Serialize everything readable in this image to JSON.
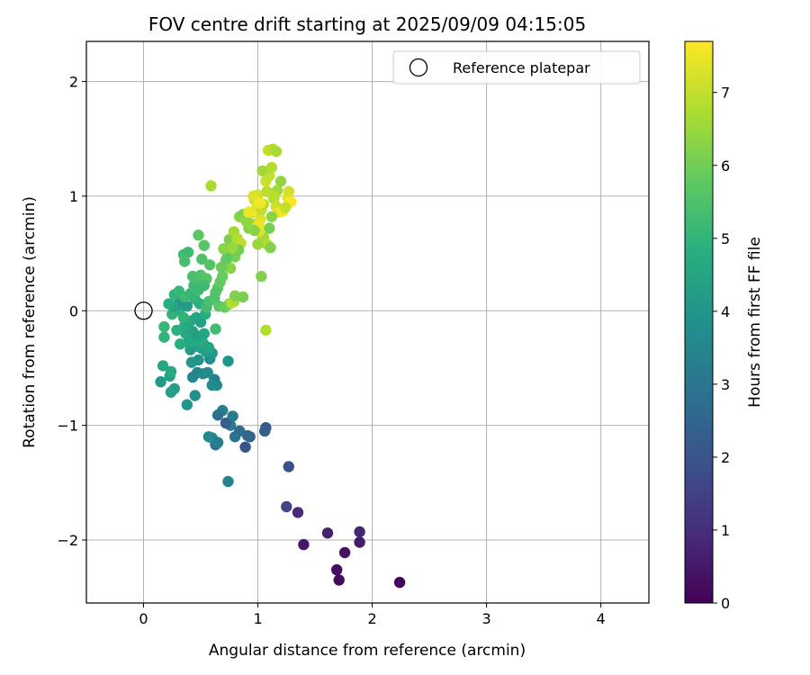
{
  "chart_data": {
    "type": "scatter",
    "title": "FOV centre drift starting at 2025/09/09 04:15:05",
    "xlabel": "Angular distance from reference (arcmin)",
    "ylabel": "Rotation from reference (arcmin)",
    "xlim": [
      -0.5,
      4.42
    ],
    "ylim": [
      -2.55,
      2.35
    ],
    "xticks": [
      0,
      1,
      2,
      3,
      4
    ],
    "yticks": [
      -2,
      -1,
      0,
      1,
      2
    ],
    "grid": true,
    "legend": {
      "placement": "top-right",
      "entries": [
        "Reference platepar"
      ]
    },
    "reference_point": {
      "x": 0.0,
      "y": 0.0
    },
    "colorbar": {
      "label": "Hours from first FF file",
      "colormap": "viridis",
      "min": 0,
      "max": 7.7,
      "ticks": [
        0,
        1,
        2,
        3,
        4,
        5,
        6,
        7
      ]
    },
    "points": [
      {
        "x": 2.24,
        "y": -2.37,
        "c": 0.1
      },
      {
        "x": 1.71,
        "y": -2.35,
        "c": 0.2
      },
      {
        "x": 1.69,
        "y": -2.26,
        "c": 0.3
      },
      {
        "x": 1.76,
        "y": -2.11,
        "c": 0.4
      },
      {
        "x": 1.4,
        "y": -2.04,
        "c": 0.5
      },
      {
        "x": 1.89,
        "y": -2.02,
        "c": 0.6
      },
      {
        "x": 1.61,
        "y": -1.94,
        "c": 0.7
      },
      {
        "x": 1.89,
        "y": -1.93,
        "c": 0.8
      },
      {
        "x": 1.35,
        "y": -1.76,
        "c": 0.9
      },
      {
        "x": 1.25,
        "y": -1.71,
        "c": 1.6
      },
      {
        "x": 1.27,
        "y": -1.36,
        "c": 1.9
      },
      {
        "x": 1.07,
        "y": -1.02,
        "c": 2.1
      },
      {
        "x": 1.06,
        "y": -1.05,
        "c": 2.2
      },
      {
        "x": 0.89,
        "y": -1.19,
        "c": 2.0
      },
      {
        "x": 0.93,
        "y": -1.1,
        "c": 2.4
      },
      {
        "x": 0.91,
        "y": -1.09,
        "c": 2.6
      },
      {
        "x": 0.84,
        "y": -1.05,
        "c": 2.7
      },
      {
        "x": 0.8,
        "y": -1.1,
        "c": 2.9
      },
      {
        "x": 0.76,
        "y": -1.0,
        "c": 3.1
      },
      {
        "x": 0.72,
        "y": -0.98,
        "c": 2.3
      },
      {
        "x": 0.69,
        "y": -0.87,
        "c": 3.3
      },
      {
        "x": 0.65,
        "y": -0.91,
        "c": 2.8
      },
      {
        "x": 0.78,
        "y": -0.92,
        "c": 3.2
      },
      {
        "x": 0.74,
        "y": -1.49,
        "c": 3.4
      },
      {
        "x": 0.63,
        "y": -1.17,
        "c": 3.0
      },
      {
        "x": 0.6,
        "y": -1.11,
        "c": 3.5
      },
      {
        "x": 0.57,
        "y": -1.1,
        "c": 3.6
      },
      {
        "x": 0.65,
        "y": -1.15,
        "c": 3.2
      },
      {
        "x": 0.64,
        "y": -0.65,
        "c": 3.6
      },
      {
        "x": 0.62,
        "y": -0.6,
        "c": 3.3
      },
      {
        "x": 0.6,
        "y": -0.65,
        "c": 3.7
      },
      {
        "x": 0.74,
        "y": -0.44,
        "c": 3.9
      },
      {
        "x": 0.45,
        "y": -0.74,
        "c": 3.8
      },
      {
        "x": 0.38,
        "y": -0.82,
        "c": 4.0
      },
      {
        "x": 0.15,
        "y": -0.62,
        "c": 4.1
      },
      {
        "x": 0.27,
        "y": -0.68,
        "c": 4.2
      },
      {
        "x": 0.24,
        "y": -0.71,
        "c": 4.3
      },
      {
        "x": 0.23,
        "y": -0.57,
        "c": 4.4
      },
      {
        "x": 0.24,
        "y": -0.53,
        "c": 4.6
      },
      {
        "x": 0.17,
        "y": -0.48,
        "c": 4.5
      },
      {
        "x": 0.43,
        "y": -0.58,
        "c": 3.5
      },
      {
        "x": 0.47,
        "y": -0.54,
        "c": 3.4
      },
      {
        "x": 0.52,
        "y": -0.55,
        "c": 3.6
      },
      {
        "x": 0.56,
        "y": -0.54,
        "c": 3.7
      },
      {
        "x": 0.42,
        "y": -0.45,
        "c": 4.0
      },
      {
        "x": 0.48,
        "y": -0.43,
        "c": 3.9
      },
      {
        "x": 0.58,
        "y": -0.42,
        "c": 3.8
      },
      {
        "x": 0.6,
        "y": -0.37,
        "c": 4.1
      },
      {
        "x": 0.55,
        "y": -0.36,
        "c": 4.2
      },
      {
        "x": 0.51,
        "y": -0.33,
        "c": 4.3
      },
      {
        "x": 0.46,
        "y": -0.31,
        "c": 4.4
      },
      {
        "x": 0.41,
        "y": -0.34,
        "c": 4.2
      },
      {
        "x": 0.39,
        "y": -0.28,
        "c": 4.5
      },
      {
        "x": 0.44,
        "y": -0.26,
        "c": 4.6
      },
      {
        "x": 0.52,
        "y": -0.28,
        "c": 4.7
      },
      {
        "x": 0.57,
        "y": -0.32,
        "c": 4.5
      },
      {
        "x": 0.32,
        "y": -0.29,
        "c": 4.8
      },
      {
        "x": 0.37,
        "y": -0.2,
        "c": 4.6
      },
      {
        "x": 0.43,
        "y": -0.18,
        "c": 4.4
      },
      {
        "x": 0.47,
        "y": -0.22,
        "c": 4.3
      },
      {
        "x": 0.53,
        "y": -0.2,
        "c": 4.5
      },
      {
        "x": 0.29,
        "y": -0.17,
        "c": 4.9
      },
      {
        "x": 0.36,
        "y": -0.13,
        "c": 4.7
      },
      {
        "x": 0.41,
        "y": -0.09,
        "c": 4.6
      },
      {
        "x": 0.46,
        "y": -0.06,
        "c": 4.5
      },
      {
        "x": 0.5,
        "y": -0.1,
        "c": 4.4
      },
      {
        "x": 0.54,
        "y": -0.03,
        "c": 4.8
      },
      {
        "x": 0.18,
        "y": -0.23,
        "c": 5.0
      },
      {
        "x": 0.18,
        "y": -0.14,
        "c": 5.1
      },
      {
        "x": 0.25,
        "y": -0.03,
        "c": 5.0
      },
      {
        "x": 0.31,
        "y": 0.0,
        "c": 4.9
      },
      {
        "x": 0.35,
        "y": -0.06,
        "c": 5.0
      },
      {
        "x": 0.38,
        "y": 0.04,
        "c": 4.2
      },
      {
        "x": 0.33,
        "y": 0.09,
        "c": 3.9
      },
      {
        "x": 0.29,
        "y": 0.05,
        "c": 4.1
      },
      {
        "x": 0.26,
        "y": 0.04,
        "c": 4.4
      },
      {
        "x": 0.22,
        "y": 0.06,
        "c": 4.8
      },
      {
        "x": 0.27,
        "y": 0.14,
        "c": 5.0
      },
      {
        "x": 0.31,
        "y": 0.17,
        "c": 5.1
      },
      {
        "x": 0.36,
        "y": 0.12,
        "c": 5.2
      },
      {
        "x": 0.41,
        "y": 0.15,
        "c": 5.1
      },
      {
        "x": 0.45,
        "y": 0.1,
        "c": 5.0
      },
      {
        "x": 0.49,
        "y": 0.06,
        "c": 4.9
      },
      {
        "x": 0.55,
        "y": 0.03,
        "c": 5.3
      },
      {
        "x": 0.57,
        "y": 0.08,
        "c": 5.4
      },
      {
        "x": 0.44,
        "y": 0.22,
        "c": 5.2
      },
      {
        "x": 0.47,
        "y": 0.26,
        "c": 5.3
      },
      {
        "x": 0.43,
        "y": 0.3,
        "c": 5.4
      },
      {
        "x": 0.5,
        "y": 0.31,
        "c": 5.5
      },
      {
        "x": 0.55,
        "y": 0.28,
        "c": 5.6
      },
      {
        "x": 0.53,
        "y": 0.22,
        "c": 5.3
      },
      {
        "x": 0.48,
        "y": 0.18,
        "c": 5.2
      },
      {
        "x": 0.63,
        "y": 0.16,
        "c": 5.7
      },
      {
        "x": 0.65,
        "y": 0.2,
        "c": 5.6
      },
      {
        "x": 0.67,
        "y": 0.25,
        "c": 5.8
      },
      {
        "x": 0.69,
        "y": 0.3,
        "c": 5.9
      },
      {
        "x": 0.62,
        "y": 0.11,
        "c": 5.5
      },
      {
        "x": 0.66,
        "y": 0.04,
        "c": 5.7
      },
      {
        "x": 0.63,
        "y": -0.16,
        "c": 5.3
      },
      {
        "x": 0.71,
        "y": 0.03,
        "c": 5.9
      },
      {
        "x": 0.75,
        "y": 0.06,
        "c": 6.0
      },
      {
        "x": 0.79,
        "y": 0.08,
        "c": 6.5
      },
      {
        "x": 0.77,
        "y": 0.07,
        "c": 6.8
      },
      {
        "x": 0.8,
        "y": 0.13,
        "c": 6.2
      },
      {
        "x": 0.87,
        "y": 0.12,
        "c": 6.1
      },
      {
        "x": 0.72,
        "y": 0.44,
        "c": 5.9
      },
      {
        "x": 0.76,
        "y": 0.37,
        "c": 6.3
      },
      {
        "x": 0.8,
        "y": 0.47,
        "c": 6.1
      },
      {
        "x": 0.72,
        "y": 0.53,
        "c": 6.2
      },
      {
        "x": 0.75,
        "y": 0.62,
        "c": 6.1
      },
      {
        "x": 0.79,
        "y": 0.69,
        "c": 6.6
      },
      {
        "x": 0.82,
        "y": 0.63,
        "c": 6.8
      },
      {
        "x": 0.85,
        "y": 0.59,
        "c": 6.9
      },
      {
        "x": 0.84,
        "y": 0.82,
        "c": 6.3
      },
      {
        "x": 0.87,
        "y": 0.84,
        "c": 6.1
      },
      {
        "x": 0.89,
        "y": 0.8,
        "c": 6.4
      },
      {
        "x": 0.92,
        "y": 0.72,
        "c": 6.2
      },
      {
        "x": 0.94,
        "y": 0.76,
        "c": 6.6
      },
      {
        "x": 0.96,
        "y": 0.86,
        "c": 6.7
      },
      {
        "x": 0.97,
        "y": 0.97,
        "c": 6.9
      },
      {
        "x": 1.0,
        "y": 1.01,
        "c": 7.2
      },
      {
        "x": 0.99,
        "y": 0.91,
        "c": 7.4
      },
      {
        "x": 1.0,
        "y": 0.85,
        "c": 7.6
      },
      {
        "x": 1.02,
        "y": 0.8,
        "c": 7.3
      },
      {
        "x": 1.03,
        "y": 0.88,
        "c": 7.0
      },
      {
        "x": 1.05,
        "y": 0.93,
        "c": 6.8
      },
      {
        "x": 1.08,
        "y": 1.04,
        "c": 6.9
      },
      {
        "x": 1.07,
        "y": 1.13,
        "c": 7.1
      },
      {
        "x": 1.1,
        "y": 1.18,
        "c": 7.0
      },
      {
        "x": 1.12,
        "y": 1.25,
        "c": 6.8
      },
      {
        "x": 1.04,
        "y": 1.22,
        "c": 6.6
      },
      {
        "x": 1.09,
        "y": 1.4,
        "c": 7.0
      },
      {
        "x": 1.13,
        "y": 1.41,
        "c": 6.9
      },
      {
        "x": 1.16,
        "y": 1.39,
        "c": 6.7
      },
      {
        "x": 1.17,
        "y": 1.05,
        "c": 6.6
      },
      {
        "x": 1.2,
        "y": 1.13,
        "c": 6.4
      },
      {
        "x": 1.14,
        "y": 0.98,
        "c": 6.5
      },
      {
        "x": 1.16,
        "y": 0.91,
        "c": 7.1
      },
      {
        "x": 1.18,
        "y": 0.86,
        "c": 7.4
      },
      {
        "x": 1.22,
        "y": 0.87,
        "c": 7.6
      },
      {
        "x": 1.26,
        "y": 0.99,
        "c": 7.4
      },
      {
        "x": 1.27,
        "y": 1.04,
        "c": 7.2
      },
      {
        "x": 1.29,
        "y": 0.95,
        "c": 7.7
      },
      {
        "x": 1.12,
        "y": 0.82,
        "c": 6.3
      },
      {
        "x": 1.1,
        "y": 0.72,
        "c": 6.1
      },
      {
        "x": 1.05,
        "y": 0.64,
        "c": 6.6
      },
      {
        "x": 1.08,
        "y": 0.58,
        "c": 6.8
      },
      {
        "x": 1.11,
        "y": 0.55,
        "c": 6.2
      },
      {
        "x": 1.0,
        "y": 0.58,
        "c": 6.5
      },
      {
        "x": 1.01,
        "y": 0.69,
        "c": 7.3
      },
      {
        "x": 1.01,
        "y": 0.75,
        "c": 7.5
      },
      {
        "x": 1.03,
        "y": 0.3,
        "c": 6.2
      },
      {
        "x": 1.07,
        "y": -0.17,
        "c": 6.8
      },
      {
        "x": 0.59,
        "y": 1.09,
        "c": 6.7
      },
      {
        "x": 0.48,
        "y": 0.66,
        "c": 5.7
      },
      {
        "x": 0.53,
        "y": 0.57,
        "c": 5.6
      },
      {
        "x": 0.35,
        "y": 0.49,
        "c": 5.3
      },
      {
        "x": 0.39,
        "y": 0.51,
        "c": 5.2
      },
      {
        "x": 0.36,
        "y": 0.43,
        "c": 5.4
      },
      {
        "x": 0.51,
        "y": 0.45,
        "c": 5.5
      },
      {
        "x": 0.58,
        "y": 0.4,
        "c": 5.6
      },
      {
        "x": 0.73,
        "y": 0.46,
        "c": 5.8
      },
      {
        "x": 0.68,
        "y": 0.38,
        "c": 5.9
      },
      {
        "x": 0.9,
        "y": 0.78,
        "c": 6.4
      },
      {
        "x": 0.97,
        "y": 0.7,
        "c": 6.3
      },
      {
        "x": 1.24,
        "y": 0.9,
        "c": 7.0
      },
      {
        "x": 1.14,
        "y": 1.0,
        "c": 6.9
      },
      {
        "x": 0.83,
        "y": 0.53,
        "c": 6.0
      },
      {
        "x": 0.7,
        "y": 0.54,
        "c": 6.3
      },
      {
        "x": 0.78,
        "y": 0.55,
        "c": 6.5
      },
      {
        "x": 0.96,
        "y": 1.0,
        "c": 7.3
      },
      {
        "x": 0.92,
        "y": 0.86,
        "c": 7.5
      },
      {
        "x": 1.02,
        "y": 0.94,
        "c": 7.6
      }
    ]
  }
}
